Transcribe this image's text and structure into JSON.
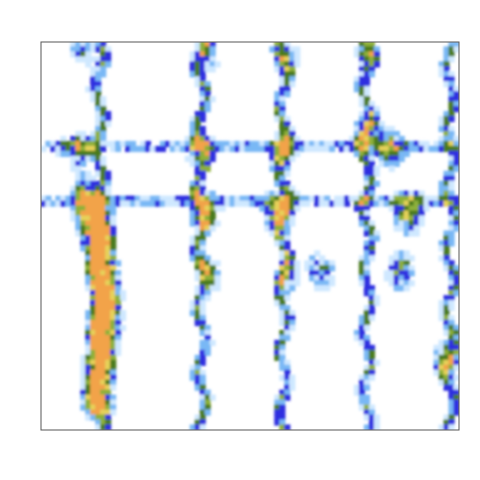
{
  "chart_data": {
    "type": "heatmap",
    "title": "",
    "xlabel": "",
    "ylabel": "",
    "tick_labels_shown": false,
    "grid": false,
    "legend": "none",
    "colorscale": [
      "#ffffff",
      "#cfe8ff",
      "#79b8f5",
      "#2f2fe0",
      "#4a7a1a",
      "#8db03a",
      "#e6d25a",
      "#f2a34a"
    ],
    "columns_x_fraction": [
      0.14,
      0.385,
      0.58,
      0.78,
      0.98
    ],
    "horizontal_bands_y_fraction": [
      0.27,
      0.41
    ],
    "hotspots": [
      {
        "x": 0.12,
        "y": 0.45,
        "v": 1.0
      },
      {
        "x": 0.14,
        "y": 0.52,
        "v": 0.95
      },
      {
        "x": 0.15,
        "y": 0.6,
        "v": 0.9
      },
      {
        "x": 0.16,
        "y": 0.68,
        "v": 1.0
      },
      {
        "x": 0.15,
        "y": 0.76,
        "v": 0.95
      },
      {
        "x": 0.14,
        "y": 0.84,
        "v": 0.85
      },
      {
        "x": 0.13,
        "y": 0.92,
        "v": 0.9
      },
      {
        "x": 0.11,
        "y": 0.4,
        "v": 0.7
      },
      {
        "x": 0.09,
        "y": 0.28,
        "v": 0.55
      },
      {
        "x": 0.39,
        "y": 0.44,
        "v": 0.75
      },
      {
        "x": 0.4,
        "y": 0.6,
        "v": 0.55
      },
      {
        "x": 0.38,
        "y": 0.28,
        "v": 0.5
      },
      {
        "x": 0.57,
        "y": 0.44,
        "v": 0.8
      },
      {
        "x": 0.58,
        "y": 0.28,
        "v": 0.55
      },
      {
        "x": 0.59,
        "y": 0.6,
        "v": 0.45
      },
      {
        "x": 0.67,
        "y": 0.59,
        "v": 0.55
      },
      {
        "x": 0.78,
        "y": 0.23,
        "v": 0.6
      },
      {
        "x": 0.84,
        "y": 0.28,
        "v": 0.65
      },
      {
        "x": 0.88,
        "y": 0.44,
        "v": 0.85
      },
      {
        "x": 0.86,
        "y": 0.59,
        "v": 0.65
      },
      {
        "x": 0.97,
        "y": 0.82,
        "v": 0.6
      },
      {
        "x": 0.1,
        "y": 0.02,
        "v": 0.45
      },
      {
        "x": 0.4,
        "y": 0.03,
        "v": 0.45
      },
      {
        "x": 0.59,
        "y": 0.05,
        "v": 0.45
      },
      {
        "x": 0.78,
        "y": 0.03,
        "v": 0.45
      }
    ]
  }
}
